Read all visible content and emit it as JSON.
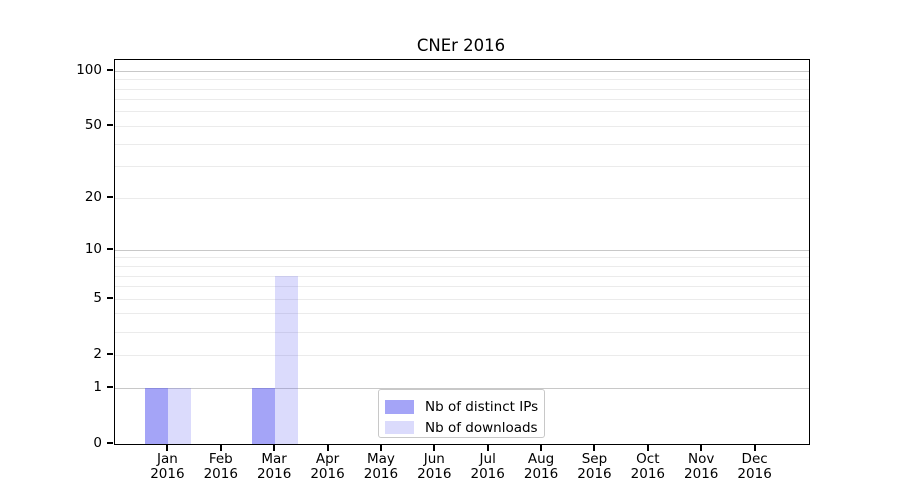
{
  "title": "CNEr 2016",
  "colors": {
    "axis": "#000000",
    "grid_minor": "#ebebeb",
    "grid_major": "#c8c8c8",
    "legend_border": "#c8c8c8",
    "background": "#ffffff",
    "bar_base_hex": "#5a5af0"
  },
  "chart_data": {
    "type": "bar",
    "title": "CNEr 2016",
    "year": "2016",
    "categories": [
      "Jan 2016",
      "Feb 2016",
      "Mar 2016",
      "Apr 2016",
      "May 2016",
      "Jun 2016",
      "Jul 2016",
      "Aug 2016",
      "Sep 2016",
      "Oct 2016",
      "Nov 2016",
      "Dec 2016"
    ],
    "month_labels": [
      "Jan",
      "Feb",
      "Mar",
      "Apr",
      "May",
      "Jun",
      "Jul",
      "Aug",
      "Sep",
      "Oct",
      "Nov",
      "Dec"
    ],
    "series": [
      {
        "name": "Nb of distinct IPs",
        "color": "rgba(90,90,240,0.55)",
        "values": [
          1,
          0,
          1,
          0,
          0,
          0,
          0,
          0,
          0,
          0,
          0,
          0
        ]
      },
      {
        "name": "Nb of downloads",
        "color": "rgba(90,90,240,0.22)",
        "values": [
          1,
          0,
          7,
          0,
          0,
          0,
          0,
          0,
          0,
          0,
          0,
          0
        ]
      }
    ],
    "y_scale": "log10(1+v)",
    "y_ticks": [
      0,
      1,
      2,
      5,
      10,
      20,
      50,
      100
    ],
    "y_minor_gridlines": [
      1,
      2,
      3,
      4,
      5,
      6,
      7,
      8,
      9,
      10,
      20,
      30,
      40,
      50,
      60,
      70,
      80,
      90,
      100
    ],
    "y_major_gridlines": [
      1,
      10,
      100
    ],
    "ylim": [
      0,
      115
    ],
    "xlabel": "",
    "ylabel": "",
    "grid": true,
    "legend_position": "lower center"
  }
}
